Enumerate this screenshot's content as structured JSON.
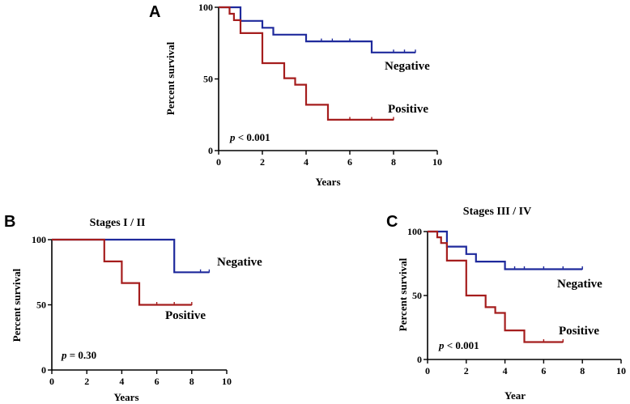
{
  "chart_data": [
    {
      "type": "line",
      "panel": "A",
      "title": "",
      "xlabel": "Years",
      "ylabel": "Percent survival",
      "xlim": [
        0,
        10
      ],
      "ylim": [
        0,
        100
      ],
      "xticks": [
        0,
        2,
        4,
        6,
        8,
        10
      ],
      "yticks": [
        0,
        50,
        100
      ],
      "xtick_labels": [
        "0",
        "2",
        "4",
        "6",
        "8",
        "10"
      ],
      "ytick_labels": [
        "0",
        "50",
        "100"
      ],
      "annotation": {
        "p": "p",
        "rest": " < 0.001"
      },
      "series": [
        {
          "name": "Negative",
          "color": "#1f2a9c",
          "steps": [
            [
              0,
              100
            ],
            [
              1,
              90.5
            ],
            [
              2,
              85.7
            ],
            [
              2.5,
              80.9
            ],
            [
              4,
              76.2
            ],
            [
              7,
              68.5
            ],
            [
              9,
              68.5
            ]
          ],
          "censored": [
            [
              4.7,
              76.2
            ],
            [
              5.2,
              76.2
            ],
            [
              6,
              76.2
            ],
            [
              8,
              68.5
            ],
            [
              8.5,
              68.5
            ],
            [
              9,
              68.5
            ]
          ]
        },
        {
          "name": "Positive",
          "color": "#a51d1d",
          "steps": [
            [
              0,
              100
            ],
            [
              0.5,
              95.5
            ],
            [
              0.7,
              91
            ],
            [
              1,
              82
            ],
            [
              2,
              61
            ],
            [
              3,
              50.5
            ],
            [
              3.5,
              46
            ],
            [
              4,
              32
            ],
            [
              5,
              21.5
            ],
            [
              8,
              21.5
            ]
          ],
          "censored": [
            [
              6,
              21.5
            ],
            [
              7,
              21.5
            ],
            [
              8,
              21.5
            ]
          ]
        }
      ]
    },
    {
      "type": "line",
      "panel": "B",
      "title": "Stages I / II",
      "xlabel": "Years",
      "ylabel": "Percent survival",
      "xlim": [
        0,
        10
      ],
      "ylim": [
        0,
        100
      ],
      "xticks": [
        0,
        2,
        4,
        6,
        8,
        10
      ],
      "yticks": [
        0,
        50,
        100
      ],
      "xtick_labels": [
        "0",
        "2",
        "4",
        "6",
        "8",
        "10"
      ],
      "ytick_labels": [
        "0",
        "50",
        "100"
      ],
      "annotation": {
        "p": "p",
        "rest": " = 0.30"
      },
      "series": [
        {
          "name": "Negative",
          "color": "#1f2a9c",
          "steps": [
            [
              0,
              100
            ],
            [
              7,
              75
            ],
            [
              9,
              75
            ]
          ],
          "censored": [
            [
              8.5,
              75
            ],
            [
              9,
              75
            ]
          ]
        },
        {
          "name": "Positive",
          "color": "#a51d1d",
          "steps": [
            [
              0,
              100
            ],
            [
              3,
              83.3
            ],
            [
              4,
              66.7
            ],
            [
              5,
              50
            ],
            [
              8,
              50
            ]
          ],
          "censored": [
            [
              6,
              50
            ],
            [
              7,
              50
            ],
            [
              8,
              50
            ]
          ]
        }
      ]
    },
    {
      "type": "line",
      "panel": "C",
      "title": "Stages III / IV",
      "xlabel": "Year",
      "ylabel": "Percent survival",
      "xlim": [
        0,
        10
      ],
      "ylim": [
        0,
        100
      ],
      "xticks": [
        0,
        2,
        4,
        6,
        8,
        10
      ],
      "yticks": [
        0,
        50,
        100
      ],
      "xtick_labels": [
        "0",
        "2",
        "4",
        "6",
        "8",
        "10"
      ],
      "ytick_labels": [
        "0",
        "50",
        "100"
      ],
      "annotation": {
        "p": "p",
        "rest": " < 0.001"
      },
      "series": [
        {
          "name": "Negative",
          "color": "#1f2a9c",
          "steps": [
            [
              0,
              100
            ],
            [
              1,
              88.2
            ],
            [
              2,
              82.4
            ],
            [
              2.5,
              76.5
            ],
            [
              4,
              70.6
            ],
            [
              8,
              70.6
            ]
          ],
          "censored": [
            [
              4.5,
              70.6
            ],
            [
              5,
              70.6
            ],
            [
              6,
              70.6
            ],
            [
              7,
              70.6
            ],
            [
              8,
              70.6
            ]
          ]
        },
        {
          "name": "Positive",
          "color": "#a51d1d",
          "steps": [
            [
              0,
              100
            ],
            [
              0.5,
              95.5
            ],
            [
              0.7,
              91
            ],
            [
              1,
              77.3
            ],
            [
              2,
              50
            ],
            [
              3,
              40.9
            ],
            [
              3.5,
              36.4
            ],
            [
              4,
              22.7
            ],
            [
              5,
              13.6
            ],
            [
              7,
              13.6
            ]
          ],
          "censored": [
            [
              6,
              13.6
            ],
            [
              7,
              13.6
            ]
          ]
        }
      ]
    }
  ]
}
